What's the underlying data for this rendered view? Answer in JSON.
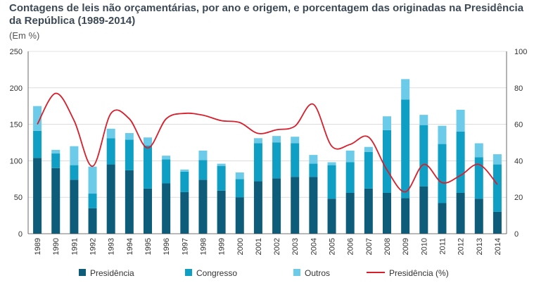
{
  "title": "Contagens de leis não orçamentárias, por ano e origem, e porcentagem das originadas na Presidência da República (1989-2014)",
  "subtitle": "(Em %)",
  "colors": {
    "presidencia": "#0d5d7a",
    "congresso": "#109fc4",
    "outros": "#6ccbe8",
    "percent_line": "#d91e2b"
  },
  "chart_data": {
    "type": "bar",
    "stacked": true,
    "title": "Contagens de leis não orçamentárias, por ano e origem, e porcentagem das originadas na Presidência da República (1989-2014)",
    "categories": [
      "1989",
      "1990",
      "1991",
      "1992",
      "1993",
      "1994",
      "1995",
      "1996",
      "1997",
      "1998",
      "1999",
      "2000",
      "2001",
      "2002",
      "2003",
      "2004",
      "2005",
      "2006",
      "2007",
      "2008",
      "2009",
      "2010",
      "2011",
      "2012",
      "2013",
      "2014"
    ],
    "series": [
      {
        "name": "Presidência",
        "values": [
          104,
          90,
          74,
          35,
          95,
          87,
          62,
          69,
          57,
          74,
          59,
          50,
          72,
          76,
          78,
          78,
          48,
          56,
          62,
          56,
          49,
          65,
          42,
          56,
          48,
          30
        ]
      },
      {
        "name": "Congresso",
        "values": [
          37,
          20,
          20,
          20,
          36,
          42,
          59,
          33,
          28,
          27,
          34,
          25,
          52,
          49,
          46,
          18,
          46,
          42,
          50,
          86,
          135,
          84,
          81,
          84,
          57,
          65
        ]
      },
      {
        "name": "Outros",
        "values": [
          34,
          5,
          26,
          37,
          13,
          9,
          11,
          5,
          3,
          13,
          3,
          9,
          7,
          9,
          9,
          12,
          4,
          16,
          7,
          19,
          28,
          14,
          25,
          30,
          19,
          14
        ]
      }
    ],
    "line": {
      "name": "Presidência (%)",
      "axis": "right",
      "values": [
        60,
        77,
        62,
        37,
        66,
        63,
        47,
        63,
        66,
        65,
        62,
        61,
        55,
        57,
        59,
        71,
        48,
        49,
        53,
        35,
        23,
        38,
        28,
        32,
        38,
        27
      ]
    },
    "ylim": [
      0,
      250
    ],
    "y_ticks": [
      0,
      50,
      100,
      150,
      200,
      250
    ],
    "y2lim": [
      0,
      100
    ],
    "y2_ticks": [
      0,
      20,
      40,
      60,
      80,
      100
    ],
    "grid": true,
    "legend_position": "bottom"
  },
  "legend": [
    {
      "label": "Presidência",
      "kind": "bar",
      "color_key": "presidencia"
    },
    {
      "label": "Congresso",
      "kind": "bar",
      "color_key": "congresso"
    },
    {
      "label": "Outros",
      "kind": "bar",
      "color_key": "outros"
    },
    {
      "label": "Presidência (%)",
      "kind": "line",
      "color_key": "percent_line"
    }
  ]
}
